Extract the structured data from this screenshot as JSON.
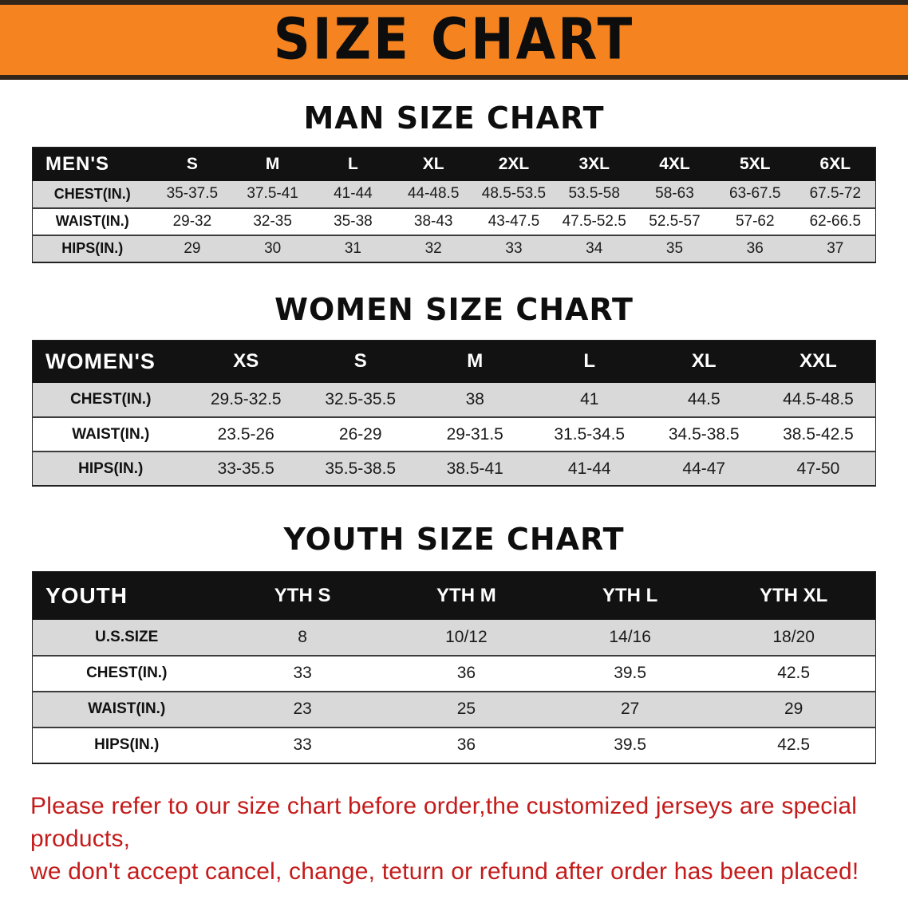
{
  "banner": {
    "title": "SIZE CHART"
  },
  "colors": {
    "banner-bg": "#f5831f",
    "banner-border": "#32251a",
    "header-bg": "#121212",
    "stripe": "#d9d9d9",
    "disclaimer-red": "#c41b1b"
  },
  "sections": [
    {
      "heading": "MAN SIZE CHART",
      "table": {
        "header": [
          "MEN'S",
          "S",
          "M",
          "L",
          "XL",
          "2XL",
          "3XL",
          "4XL",
          "5XL",
          "6XL"
        ],
        "rows": [
          [
            "CHEST(IN.)",
            "35-37.5",
            "37.5-41",
            "41-44",
            "44-48.5",
            "48.5-53.5",
            "53.5-58",
            "58-63",
            "63-67.5",
            "67.5-72"
          ],
          [
            "WAIST(IN.)",
            "29-32",
            "32-35",
            "35-38",
            "38-43",
            "43-47.5",
            "47.5-52.5",
            "52.5-57",
            "57-62",
            "62-66.5"
          ],
          [
            "HIPS(IN.)",
            "29",
            "30",
            "31",
            "32",
            "33",
            "34",
            "35",
            "36",
            "37"
          ]
        ]
      }
    },
    {
      "heading": "WOMEN SIZE CHART",
      "table": {
        "header": [
          "WOMEN'S",
          "XS",
          "S",
          "M",
          "L",
          "XL",
          "XXL"
        ],
        "rows": [
          [
            "CHEST(IN.)",
            "29.5-32.5",
            "32.5-35.5",
            "38",
            "41",
            "44.5",
            "44.5-48.5"
          ],
          [
            "WAIST(IN.)",
            "23.5-26",
            "26-29",
            "29-31.5",
            "31.5-34.5",
            "34.5-38.5",
            "38.5-42.5"
          ],
          [
            "HIPS(IN.)",
            "33-35.5",
            "35.5-38.5",
            "38.5-41",
            "41-44",
            "44-47",
            "47-50"
          ]
        ]
      }
    },
    {
      "heading": "YOUTH SIZE CHART",
      "table": {
        "header": [
          "YOUTH",
          "YTH S",
          "YTH M",
          "YTH L",
          "YTH XL"
        ],
        "rows": [
          [
            "U.S.SIZE",
            "8",
            "10/12",
            "14/16",
            "18/20"
          ],
          [
            "CHEST(IN.)",
            "33",
            "36",
            "39.5",
            "42.5"
          ],
          [
            "WAIST(IN.)",
            "23",
            "25",
            "27",
            "29"
          ],
          [
            "HIPS(IN.)",
            "33",
            "36",
            "39.5",
            "42.5"
          ]
        ]
      }
    }
  ],
  "disclaimer": {
    "line1": "Please refer to our size chart before order,the customized jerseys are special products,",
    "line2": "we don't accept cancel, change, teturn or refund after order has been placed!"
  }
}
